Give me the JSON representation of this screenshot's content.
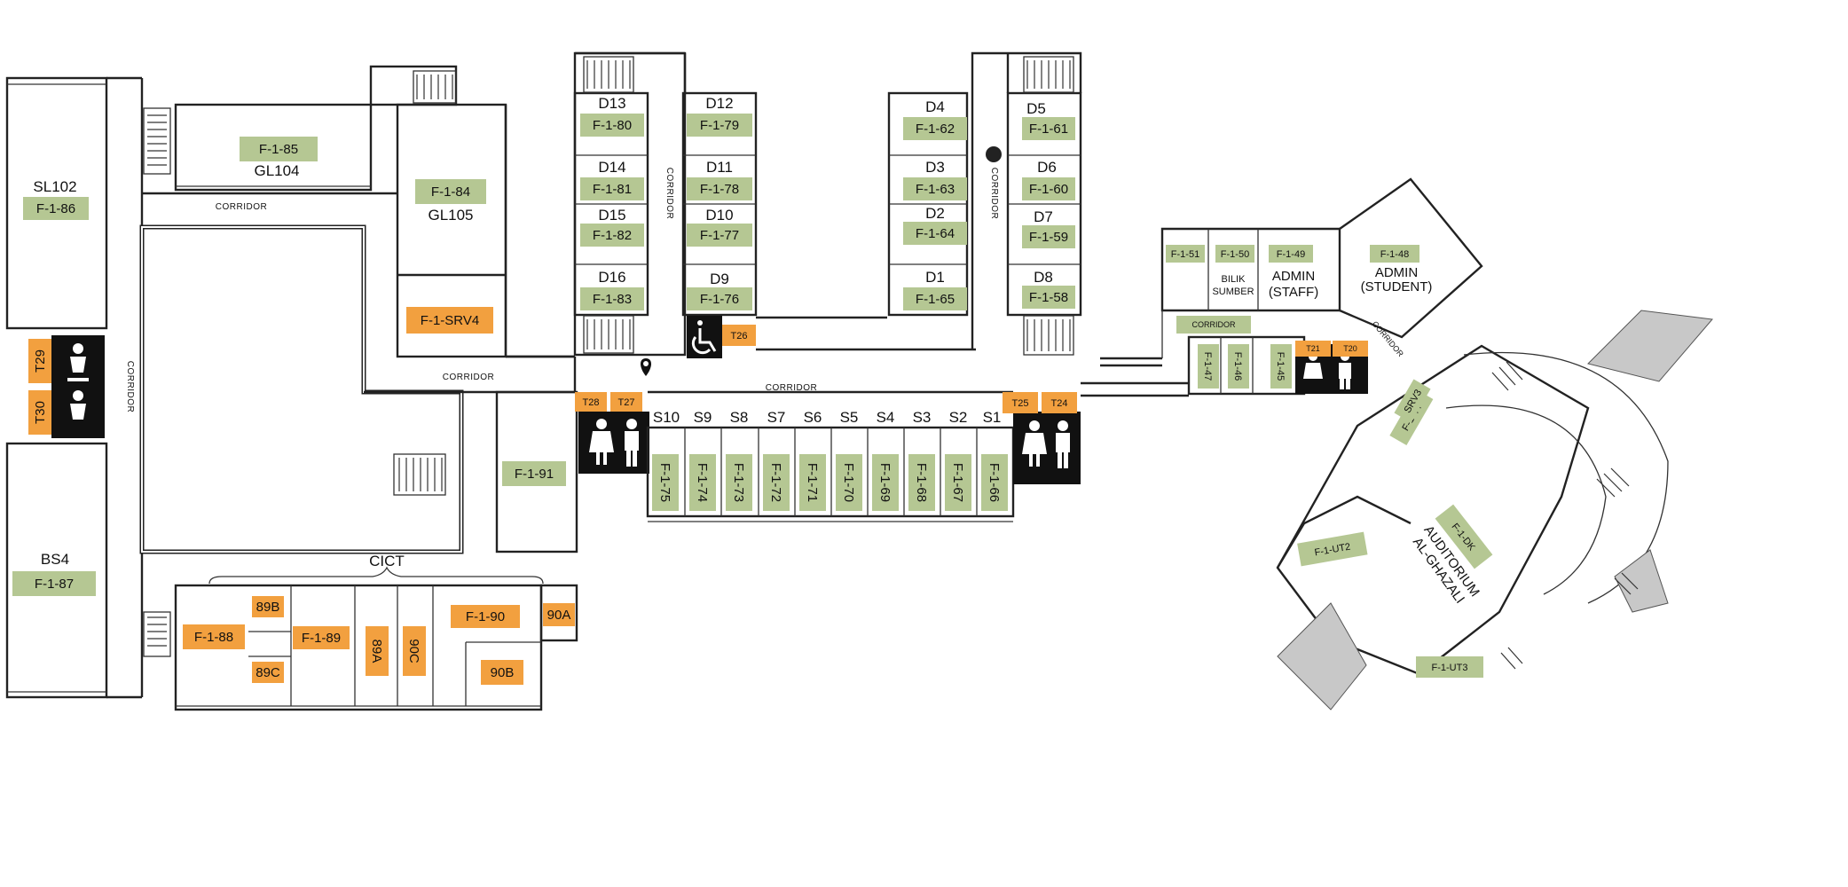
{
  "green_labels": {
    "f185": "F-1-85",
    "f186": "F-1-86",
    "f184": "F-1-84",
    "f187": "F-1-87",
    "f191": "F-1-91",
    "f180": "F-1-80",
    "f181": "F-1-81",
    "f182": "F-1-82",
    "f183": "F-1-83",
    "f179": "F-1-79",
    "f178": "F-1-78",
    "f177": "F-1-77",
    "f176": "F-1-76",
    "f162": "F-1-62",
    "f163": "F-1-63",
    "f164": "F-1-64",
    "f165": "F-1-65",
    "f161": "F-1-61",
    "f160": "F-1-60",
    "f159": "F-1-59",
    "f158": "F-1-58",
    "f175": "F-1-75",
    "f174": "F-1-74",
    "f173": "F-1-73",
    "f172": "F-1-72",
    "f171": "F-1-71",
    "f170": "F-1-70",
    "f169": "F-1-69",
    "f168": "F-1-68",
    "f167": "F-1-67",
    "f166": "F-1-66",
    "f151": "F-1-51",
    "f150": "F-1-50",
    "f149": "F-1-49",
    "f148": "F-1-48",
    "f147": "F-1-47",
    "f146": "F-1-46",
    "f145": "F-1-45",
    "f144": "F-1-44",
    "srv3": "SRV3",
    "fdk": "F-1-DK",
    "fut2": "F-1-UT2",
    "fut3": "F-1-UT3",
    "corridor_box": "CORRIDOR"
  },
  "orange_labels": {
    "srv4": "F-1-SRV4",
    "t29": "T29",
    "t30": "T30",
    "t28": "T28",
    "t27": "T27",
    "t26": "T26",
    "t25": "T25",
    "t24": "T24",
    "t21": "T21",
    "t20": "T20",
    "f188": "F-1-88",
    "f189b": "89B",
    "f189c": "89C",
    "f189": "F-1-89",
    "f189a": "89A",
    "f190c": "90C",
    "f190": "F-1-90",
    "f190a": "90A",
    "f190b": "90B"
  },
  "room_names": {
    "sl102": "SL102",
    "gl104": "GL104",
    "gl105": "GL105",
    "bs4": "BS4",
    "cict": "CICT",
    "d13": "D13",
    "d14": "D14",
    "d15": "D15",
    "d16": "D16",
    "d12": "D12",
    "d11": "D11",
    "d10": "D10",
    "d9": "D9",
    "d4": "D4",
    "d3": "D3",
    "d2": "D2",
    "d1": "D1",
    "d5": "D5",
    "d6": "D6",
    "d7": "D7",
    "d8": "D8",
    "s10": "S10",
    "s9": "S9",
    "s8": "S8",
    "s7": "S7",
    "s6": "S6",
    "s5": "S5",
    "s4": "S4",
    "s3": "S3",
    "s2": "S2",
    "s1": "S1",
    "bilik_1": "BILIK",
    "bilik_2": "SUMBER",
    "admin_staff_1": "ADMIN",
    "admin_staff_2": "(STAFF)",
    "admin_student_1": "ADMIN",
    "admin_student_2": "(STUDENT)",
    "auditorium_1": "AUDITORIUM",
    "auditorium_2": "AL-GHAZALI"
  },
  "corridor_labels": {
    "top": "CORRIDOR",
    "left": "CORRIDOR",
    "mid": "CORRIDOR",
    "main": "CORRIDOR",
    "d_block_left": "CORRIDOR",
    "d_block_right": "CORRIDOR",
    "east_diag": "CORRIDOR"
  },
  "icons": {
    "toilet": "toilet-icon",
    "wheelchair": "wheelchair-icon",
    "location_pin": "location-pin-icon",
    "marker_dot": "marker-dot-icon"
  },
  "colors": {
    "green": "#b5c793",
    "orange": "#f2a03f",
    "black": "#111111"
  }
}
